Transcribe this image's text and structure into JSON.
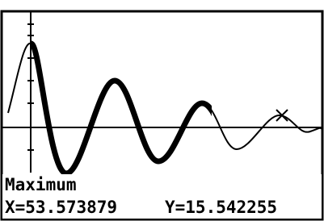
{
  "screen": {
    "label": "Maximum",
    "x_readout": "X=53.573879",
    "y_readout": "Y=15.542255"
  }
}
